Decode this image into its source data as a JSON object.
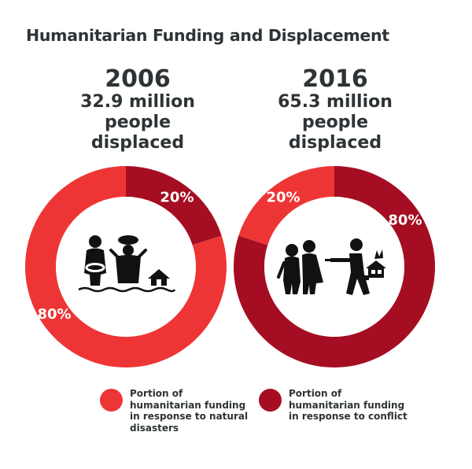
{
  "title": "Humanitarian Funding and Displacement",
  "colors": {
    "natural_disasters": "#ee3535",
    "conflict": "#a50e22",
    "text": "#2e3336",
    "icon": "#111111"
  },
  "panels": [
    {
      "year": "2006",
      "line1": "32.9 million",
      "line2": "people",
      "line3": "displaced",
      "icon": "flood-family-icon"
    },
    {
      "year": "2016",
      "line1": "65.3 million",
      "line2": "people",
      "line3": "displaced",
      "icon": "conflict-refugees-icon"
    }
  ],
  "legend": [
    {
      "label": "Portion of humanitarian funding in response to natural disasters",
      "color_key": "natural_disasters"
    },
    {
      "label": "Portion of humanitarian funding in response to conflict",
      "color_key": "conflict"
    }
  ],
  "chart_data": [
    {
      "type": "pie",
      "title": "2006",
      "labels": [
        "Portion of humanitarian funding in response to natural disasters",
        "Portion of humanitarian funding in response to conflict"
      ],
      "values": [
        80,
        20
      ],
      "value_labels": [
        "80%",
        "20%"
      ],
      "colors": [
        "#ee3535",
        "#a50e22"
      ]
    },
    {
      "type": "pie",
      "title": "2016",
      "labels": [
        "Portion of humanitarian funding in response to natural disasters",
        "Portion of humanitarian funding in response to conflict"
      ],
      "values": [
        20,
        80
      ],
      "value_labels": [
        "20%",
        "80%"
      ],
      "colors": [
        "#ee3535",
        "#a50e22"
      ]
    }
  ]
}
